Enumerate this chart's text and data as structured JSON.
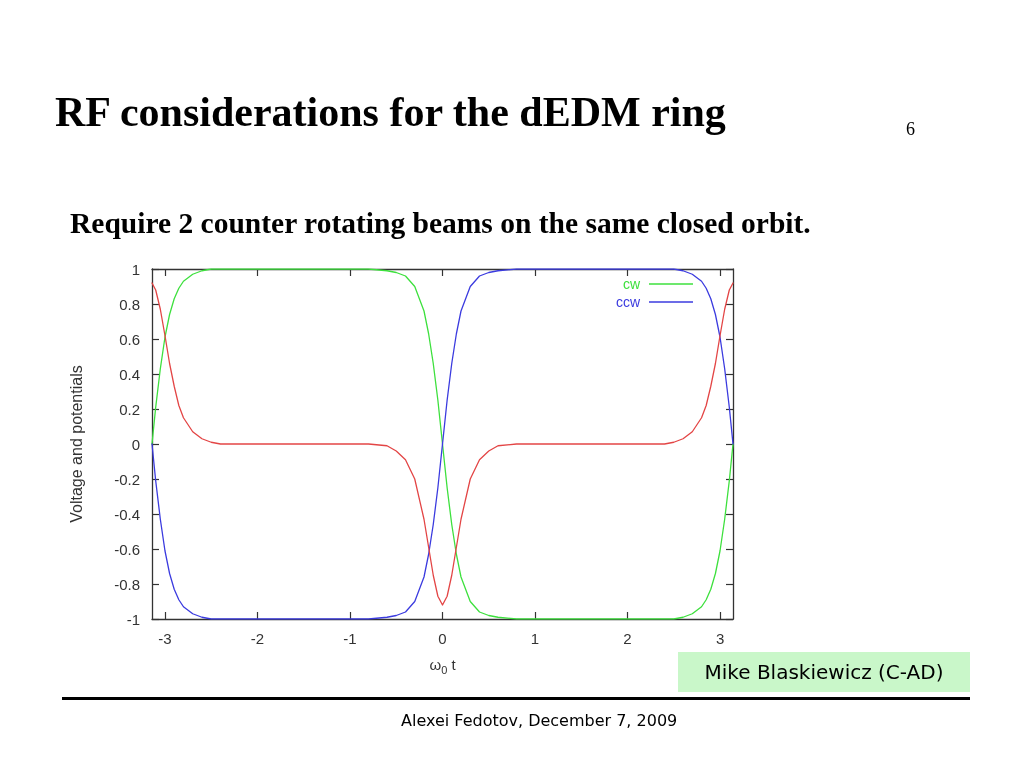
{
  "chart_data": {
    "type": "line",
    "title": "RF considerations for the dEDM ring",
    "subtitle": "Require 2 counter rotating beams on the same closed orbit.",
    "xlabel": "ω$_{0}$ t",
    "ylabel": "Voltage and potentials",
    "annotations": [
      "6",
      "Mike Blaskiewicz (C-AD)",
      "Alexei Fedotov, December 7, 2009"
    ],
    "x": [
      -3.14,
      -3.1,
      -3.05,
      -3.0,
      -2.95,
      -2.9,
      -2.85,
      -2.8,
      -2.7,
      -2.6,
      -2.5,
      -2.4,
      -2.2,
      -2.0,
      -1.5,
      -1.0,
      -0.8,
      -0.6,
      -0.5,
      -0.4,
      -0.3,
      -0.2,
      -0.15,
      -0.1,
      -0.05,
      0,
      0.05,
      0.1,
      0.15,
      0.2,
      0.3,
      0.4,
      0.5,
      0.6,
      0.8,
      1.0,
      1.5,
      2.0,
      2.2,
      2.4,
      2.5,
      2.6,
      2.7,
      2.8,
      2.85,
      2.9,
      2.95,
      3.0,
      3.05,
      3.1,
      3.14
    ],
    "series": [
      {
        "name": "cw",
        "color": "#3de03d",
        "values": [
          0,
          0.21,
          0.43,
          0.61,
          0.74,
          0.83,
          0.89,
          0.93,
          0.97,
          0.99,
          1,
          1,
          1,
          1,
          1,
          1,
          1,
          0.99,
          0.98,
          0.96,
          0.9,
          0.76,
          0.63,
          0.46,
          0.25,
          0,
          -0.25,
          -0.46,
          -0.63,
          -0.76,
          -0.9,
          -0.96,
          -0.98,
          -0.99,
          -1,
          -1,
          -1,
          -1,
          -1,
          -1,
          -1,
          -0.99,
          -0.97,
          -0.93,
          -0.89,
          -0.83,
          -0.74,
          -0.61,
          -0.43,
          -0.21,
          0
        ]
      },
      {
        "name": "ccw",
        "color": "#3b3bdf",
        "values": [
          0,
          -0.21,
          -0.43,
          -0.61,
          -0.74,
          -0.83,
          -0.89,
          -0.93,
          -0.97,
          -0.99,
          -1,
          -1,
          -1,
          -1,
          -1,
          -1,
          -1,
          -0.99,
          -0.98,
          -0.96,
          -0.9,
          -0.76,
          -0.63,
          -0.46,
          -0.25,
          0,
          0.25,
          0.46,
          0.63,
          0.76,
          0.9,
          0.96,
          0.98,
          0.99,
          1,
          1,
          1,
          1,
          1,
          1,
          1,
          0.99,
          0.97,
          0.93,
          0.89,
          0.83,
          0.74,
          0.61,
          0.43,
          0.21,
          0
        ]
      },
      {
        "color": "#e34545",
        "values": [
          0.92,
          0.88,
          0.77,
          0.62,
          0.46,
          0.33,
          0.22,
          0.15,
          0.07,
          0.03,
          0.01,
          0,
          0,
          0,
          0,
          0,
          0,
          -0.01,
          -0.04,
          -0.09,
          -0.2,
          -0.43,
          -0.59,
          -0.75,
          -0.87,
          -0.92,
          -0.87,
          -0.75,
          -0.59,
          -0.43,
          -0.2,
          -0.09,
          -0.04,
          -0.01,
          0,
          0,
          0,
          0,
          0,
          0,
          0.01,
          0.03,
          0.07,
          0.15,
          0.22,
          0.33,
          0.46,
          0.62,
          0.77,
          0.88,
          0.92
        ]
      }
    ],
    "xlim": [
      -3.14,
      3.14
    ],
    "ylim": [
      -1,
      1
    ],
    "xticks": [
      -3,
      -2,
      -1,
      0,
      1,
      2,
      3
    ],
    "yticks": [
      -1,
      -0.8,
      -0.6,
      -0.4,
      -0.2,
      0,
      0.2,
      0.4,
      0.6,
      0.8,
      1
    ],
    "legend": "top right",
    "marker": "none",
    "line_style": "solid"
  }
}
